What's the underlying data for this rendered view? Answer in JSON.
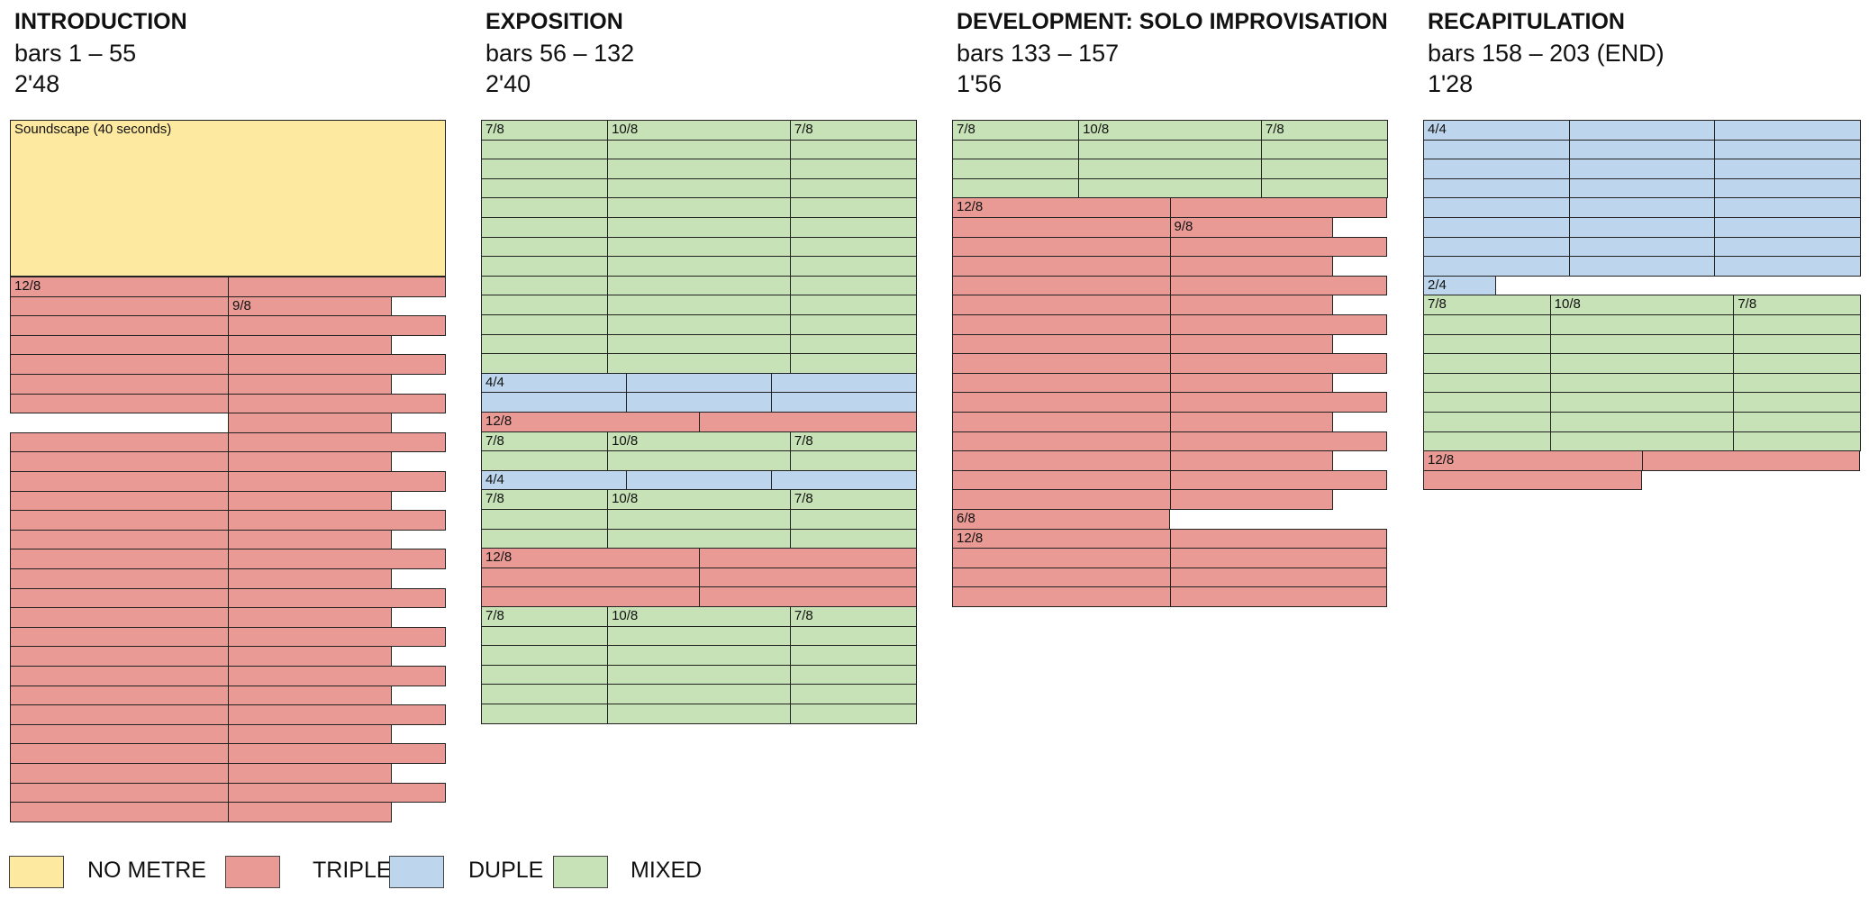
{
  "colors": {
    "no_metre": "#fde9a0",
    "triple": "#e99a95",
    "duple": "#bdd6ee",
    "mixed": "#c6e2b6",
    "grid": "#222222"
  },
  "sections": [
    {
      "title": "INTRODUCTION",
      "bars": "bars 1 – 55",
      "time": "2'48",
      "soundscape_label": "Soundscape (40 seconds)",
      "rows": [
        {
          "type": "triple",
          "cells": [
            1,
            1
          ],
          "label": "12/8"
        },
        {
          "type": "triple",
          "cells": [
            1,
            0.75
          ],
          "label2": "9/8"
        },
        {
          "type": "triple",
          "cells": [
            1,
            1
          ]
        },
        {
          "type": "triple",
          "cells": [
            1,
            0.75
          ]
        },
        {
          "type": "triple",
          "cells": [
            1,
            1
          ]
        },
        {
          "type": "triple",
          "cells": [
            1,
            0.75
          ]
        },
        {
          "type": "triple",
          "cells": [
            1,
            1
          ]
        },
        {
          "type": "triple",
          "cells": [
            0,
            0.75
          ]
        },
        {
          "type": "triple",
          "cells": [
            1,
            1
          ]
        },
        {
          "type": "triple",
          "cells": [
            1,
            0.75
          ]
        },
        {
          "type": "triple",
          "cells": [
            1,
            1
          ]
        },
        {
          "type": "triple",
          "cells": [
            1,
            0.75
          ]
        },
        {
          "type": "triple",
          "cells": [
            1,
            1
          ]
        },
        {
          "type": "triple",
          "cells": [
            1,
            0.75
          ]
        },
        {
          "type": "triple",
          "cells": [
            1,
            1
          ]
        },
        {
          "type": "triple",
          "cells": [
            1,
            0.75
          ]
        },
        {
          "type": "triple",
          "cells": [
            1,
            1
          ]
        },
        {
          "type": "triple",
          "cells": [
            1,
            0.75
          ]
        },
        {
          "type": "triple",
          "cells": [
            1,
            1
          ]
        },
        {
          "type": "triple",
          "cells": [
            1,
            0.75
          ]
        },
        {
          "type": "triple",
          "cells": [
            1,
            1
          ]
        },
        {
          "type": "triple",
          "cells": [
            1,
            0.75
          ]
        },
        {
          "type": "triple",
          "cells": [
            1,
            1
          ]
        },
        {
          "type": "triple",
          "cells": [
            1,
            0.75
          ]
        },
        {
          "type": "triple",
          "cells": [
            1,
            1
          ]
        },
        {
          "type": "triple",
          "cells": [
            1,
            0.75
          ]
        },
        {
          "type": "triple",
          "cells": [
            1,
            1
          ]
        },
        {
          "type": "triple",
          "cells": [
            1,
            0.75
          ]
        }
      ]
    },
    {
      "title": "EXPOSITION",
      "bars": "bars 56 – 132",
      "time": "2'40",
      "rows": [
        {
          "type": "mixed",
          "split": [
            0.29,
            0.71
          ],
          "labels": [
            "7/8",
            "10/8",
            "7/8"
          ]
        },
        {
          "type": "mixed",
          "split": [
            0.29,
            0.71
          ]
        },
        {
          "type": "mixed",
          "split": [
            0.29,
            0.71
          ]
        },
        {
          "type": "mixed",
          "split": [
            0.29,
            0.71
          ]
        },
        {
          "type": "mixed",
          "split": [
            0.29,
            0.71
          ]
        },
        {
          "type": "mixed",
          "split": [
            0.29,
            0.71
          ]
        },
        {
          "type": "mixed",
          "split": [
            0.29,
            0.71
          ]
        },
        {
          "type": "mixed",
          "split": [
            0.29,
            0.71
          ]
        },
        {
          "type": "mixed",
          "split": [
            0.29,
            0.71
          ]
        },
        {
          "type": "mixed",
          "split": [
            0.29,
            0.71
          ]
        },
        {
          "type": "mixed",
          "split": [
            0.29,
            0.71
          ]
        },
        {
          "type": "mixed",
          "split": [
            0.29,
            0.71
          ]
        },
        {
          "type": "mixed",
          "split": [
            0.29,
            0.71
          ]
        },
        {
          "type": "duple",
          "split": [
            0.333,
            0.667
          ],
          "labels": [
            "4/4"
          ]
        },
        {
          "type": "duple",
          "split": [
            0.333,
            0.667
          ]
        },
        {
          "type": "triple",
          "split": [
            0.5
          ],
          "labels": [
            "12/8"
          ]
        },
        {
          "type": "mixed",
          "split": [
            0.29,
            0.71
          ],
          "labels": [
            "7/8",
            "10/8",
            "7/8"
          ]
        },
        {
          "type": "mixed",
          "split": [
            0.29,
            0.71
          ]
        },
        {
          "type": "duple",
          "split": [
            0.333,
            0.667
          ],
          "labels": [
            "4/4"
          ]
        },
        {
          "type": "mixed",
          "split": [
            0.29,
            0.71
          ],
          "labels": [
            "7/8",
            "10/8",
            "7/8"
          ]
        },
        {
          "type": "mixed",
          "split": [
            0.29,
            0.71
          ]
        },
        {
          "type": "mixed",
          "split": [
            0.29,
            0.71
          ]
        },
        {
          "type": "triple",
          "split": [
            0.5
          ],
          "labels": [
            "12/8"
          ]
        },
        {
          "type": "triple",
          "split": [
            0.5
          ]
        },
        {
          "type": "triple",
          "split": [
            0.5
          ]
        },
        {
          "type": "mixed",
          "split": [
            0.29,
            0.71
          ],
          "labels": [
            "7/8",
            "10/8",
            "7/8"
          ]
        },
        {
          "type": "mixed",
          "split": [
            0.29,
            0.71
          ]
        },
        {
          "type": "mixed",
          "split": [
            0.29,
            0.71
          ]
        },
        {
          "type": "mixed",
          "split": [
            0.29,
            0.71
          ]
        },
        {
          "type": "mixed",
          "split": [
            0.29,
            0.71
          ]
        },
        {
          "type": "mixed",
          "split": [
            0.29,
            0.71
          ]
        }
      ]
    },
    {
      "title": "DEVELOPMENT: SOLO IMPROVISATION",
      "bars": "bars 133 – 157",
      "time": "1'56",
      "rows": [
        {
          "type": "mixed",
          "split": [
            0.29,
            0.71
          ],
          "labels": [
            "7/8",
            "10/8",
            "7/8"
          ]
        },
        {
          "type": "mixed",
          "split": [
            0.29,
            0.71
          ]
        },
        {
          "type": "mixed",
          "split": [
            0.29,
            0.71
          ]
        },
        {
          "type": "mixed",
          "split": [
            0.29,
            0.71
          ]
        },
        {
          "type": "triple",
          "cells": [
            1,
            1
          ],
          "label": "12/8"
        },
        {
          "type": "triple",
          "cells": [
            1,
            0.75
          ],
          "label2": "9/8"
        },
        {
          "type": "triple",
          "cells": [
            1,
            1
          ]
        },
        {
          "type": "triple",
          "cells": [
            1,
            0.75
          ]
        },
        {
          "type": "triple",
          "cells": [
            1,
            1
          ]
        },
        {
          "type": "triple",
          "cells": [
            1,
            0.75
          ]
        },
        {
          "type": "triple",
          "cells": [
            1,
            1
          ]
        },
        {
          "type": "triple",
          "cells": [
            1,
            0.75
          ]
        },
        {
          "type": "triple",
          "cells": [
            1,
            1
          ]
        },
        {
          "type": "triple",
          "cells": [
            1,
            0.75
          ]
        },
        {
          "type": "triple",
          "cells": [
            1,
            1
          ]
        },
        {
          "type": "triple",
          "cells": [
            1,
            0.75
          ]
        },
        {
          "type": "triple",
          "cells": [
            1,
            1
          ]
        },
        {
          "type": "triple",
          "cells": [
            1,
            0.75
          ]
        },
        {
          "type": "triple",
          "cells": [
            1,
            1
          ]
        },
        {
          "type": "triple",
          "cells": [
            1,
            0.75
          ]
        },
        {
          "type": "triple",
          "single": 0.5,
          "label": "6/8"
        },
        {
          "type": "triple",
          "cells": [
            1,
            1
          ],
          "label": "12/8"
        },
        {
          "type": "triple",
          "cells": [
            1,
            1
          ]
        },
        {
          "type": "triple",
          "cells": [
            1,
            1
          ]
        },
        {
          "type": "triple",
          "cells": [
            1,
            1
          ]
        }
      ]
    },
    {
      "title": "RECAPITULATION",
      "bars": "bars 158 – 203 (END)",
      "time": "1'28",
      "rows": [
        {
          "type": "duple",
          "split": [
            0.333,
            0.667
          ],
          "labels": [
            "4/4"
          ]
        },
        {
          "type": "duple",
          "split": [
            0.333,
            0.667
          ]
        },
        {
          "type": "duple",
          "split": [
            0.333,
            0.667
          ]
        },
        {
          "type": "duple",
          "split": [
            0.333,
            0.667
          ]
        },
        {
          "type": "duple",
          "split": [
            0.333,
            0.667
          ]
        },
        {
          "type": "duple",
          "split": [
            0.333,
            0.667
          ]
        },
        {
          "type": "duple",
          "split": [
            0.333,
            0.667
          ]
        },
        {
          "type": "duple",
          "split": [
            0.333,
            0.667
          ]
        },
        {
          "type": "duple",
          "single": 0.1667,
          "label": "2/4"
        },
        {
          "type": "mixed",
          "split": [
            0.29,
            0.71
          ],
          "labels": [
            "7/8",
            "10/8",
            "7/8"
          ]
        },
        {
          "type": "mixed",
          "split": [
            0.29,
            0.71
          ]
        },
        {
          "type": "mixed",
          "split": [
            0.29,
            0.71
          ]
        },
        {
          "type": "mixed",
          "split": [
            0.29,
            0.71
          ]
        },
        {
          "type": "mixed",
          "split": [
            0.29,
            0.71
          ]
        },
        {
          "type": "mixed",
          "split": [
            0.29,
            0.71
          ]
        },
        {
          "type": "mixed",
          "split": [
            0.29,
            0.71
          ]
        },
        {
          "type": "mixed",
          "split": [
            0.29,
            0.71
          ]
        },
        {
          "type": "triple",
          "cells": [
            1,
            1
          ],
          "label": "12/8"
        },
        {
          "type": "triple",
          "single": 0.5
        }
      ]
    }
  ],
  "legend": [
    {
      "key": "no_metre",
      "label": "NO METRE"
    },
    {
      "key": "triple",
      "label": "TRIPLE"
    },
    {
      "key": "duple",
      "label": "DUPLE"
    },
    {
      "key": "mixed",
      "label": "MIXED"
    }
  ]
}
